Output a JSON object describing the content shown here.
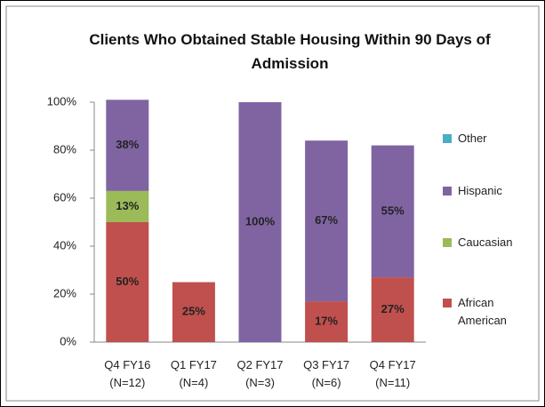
{
  "chart_data": {
    "type": "stacked_bar",
    "title": "Clients Who Obtained Stable Housing Within 90 Days of Admission",
    "categories": [
      "Q4 FY16 (N=12)",
      "Q1 FY17 (N=4)",
      "Q2 FY17 (N=3)",
      "Q3 FY17 (N=6)",
      "Q4 FY17 (N=11)"
    ],
    "series": [
      {
        "name": "African American",
        "color": "#c0504d",
        "values": [
          50,
          25,
          0,
          17,
          27
        ],
        "value_labels": [
          "50%",
          "25%",
          null,
          "17%",
          "27%"
        ]
      },
      {
        "name": "Caucasian",
        "color": "#9bbb59",
        "values": [
          13,
          0,
          0,
          0,
          0
        ],
        "value_labels": [
          "13%",
          null,
          null,
          null,
          null
        ]
      },
      {
        "name": "Hispanic",
        "color": "#8064a2",
        "values": [
          38,
          0,
          100,
          67,
          55
        ],
        "value_labels": [
          "38%",
          null,
          "100%",
          "67%",
          "55%"
        ]
      },
      {
        "name": "Other",
        "color": "#4bacc6",
        "values": [
          0,
          0,
          0,
          0,
          0
        ],
        "value_labels": [
          null,
          null,
          null,
          null,
          null
        ]
      }
    ],
    "ylim": [
      0,
      100
    ],
    "yticks": [
      {
        "value": 0,
        "label": "0%"
      },
      {
        "value": 20,
        "label": "20%"
      },
      {
        "value": 40,
        "label": "40%"
      },
      {
        "value": 60,
        "label": "60%"
      },
      {
        "value": 80,
        "label": "80%"
      },
      {
        "value": 100,
        "label": "100%"
      }
    ],
    "legend": "right"
  }
}
